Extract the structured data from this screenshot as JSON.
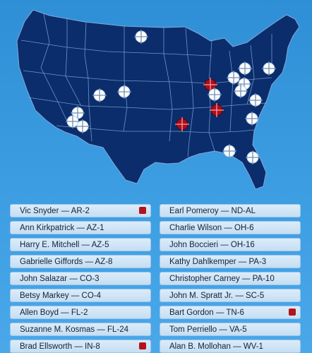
{
  "map": {
    "colors": {
      "land": "#0b2d6b",
      "border": "#7fa8dc",
      "target_white": "#ffffff",
      "target_red": "#a80f1a"
    }
  },
  "list": {
    "left": [
      {
        "label": "Vic Snyder — AR-2",
        "marked": true
      },
      {
        "label": "Ann Kirkpatrick — AZ-1",
        "marked": false
      },
      {
        "label": "Harry E. Mitchell — AZ-5",
        "marked": false
      },
      {
        "label": "Gabrielle Giffords — AZ-8",
        "marked": false
      },
      {
        "label": "John Salazar — CO-3",
        "marked": false
      },
      {
        "label": "Betsy Markey — CO-4",
        "marked": false
      },
      {
        "label": "Allen Boyd — FL-2",
        "marked": false
      },
      {
        "label": "Suzanne M. Kosmas — FL-24",
        "marked": false
      },
      {
        "label": "Brad Ellsworth — IN-8",
        "marked": true
      }
    ],
    "right": [
      {
        "label": "Earl Pomeroy — ND-AL",
        "marked": false
      },
      {
        "label": "Charlie Wilson — OH-6",
        "marked": false
      },
      {
        "label": "John Boccieri — OH-16",
        "marked": false
      },
      {
        "label": "Kathy Dahlkemper — PA-3",
        "marked": false
      },
      {
        "label": "Christopher Carney — PA-10",
        "marked": false
      },
      {
        "label": "John M. Spratt Jr. — SC-5",
        "marked": false
      },
      {
        "label": "Bart Gordon — TN-6",
        "marked": true
      },
      {
        "label": "Tom Perriello — VA-5",
        "marked": false
      },
      {
        "label": "Alan B. Mollohan — WV-1",
        "marked": false
      }
    ]
  }
}
